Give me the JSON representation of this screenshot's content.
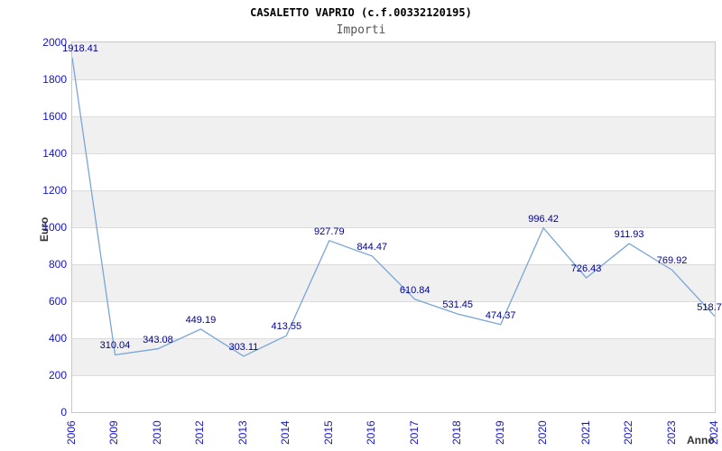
{
  "chart_data": {
    "type": "line",
    "title": "CASALETTO VAPRIO (c.f.00332120195)",
    "subtitle": "Importi",
    "xlabel": "Anno",
    "ylabel": "Euro",
    "categories": [
      "2006",
      "2009",
      "2010",
      "2012",
      "2013",
      "2014",
      "2015",
      "2016",
      "2017",
      "2018",
      "2019",
      "2020",
      "2021",
      "2022",
      "2023",
      "2024"
    ],
    "values": [
      1918.41,
      310.04,
      343.08,
      449.19,
      303.11,
      413.55,
      927.79,
      844.47,
      610.84,
      531.45,
      474.37,
      996.42,
      726.43,
      911.93,
      769.92,
      518.7
    ],
    "point_labels": [
      "1918.41",
      "310.04",
      "343.08",
      "449.19",
      "303.11",
      "413.55",
      "927.79",
      "844.47",
      "610.84",
      "531.45",
      "474.37",
      "996.42",
      "726.43",
      "911.93",
      "769.92",
      "518.7"
    ],
    "ylim": [
      0,
      2000
    ],
    "ytick_step": 200,
    "grid": true,
    "legend_position": "none",
    "band_fill": "alternating",
    "colors": {
      "line": "#7aa5d8",
      "point_label": "#00008b",
      "tick_label": "#1414cc",
      "axis_title": "#333333",
      "band_alt": "#f0f0f0",
      "band_main": "#ffffff",
      "grid_line": "#dcdcdc",
      "plot_border": "#c8c8c8",
      "title": "#000000",
      "subtitle": "#555555"
    }
  }
}
